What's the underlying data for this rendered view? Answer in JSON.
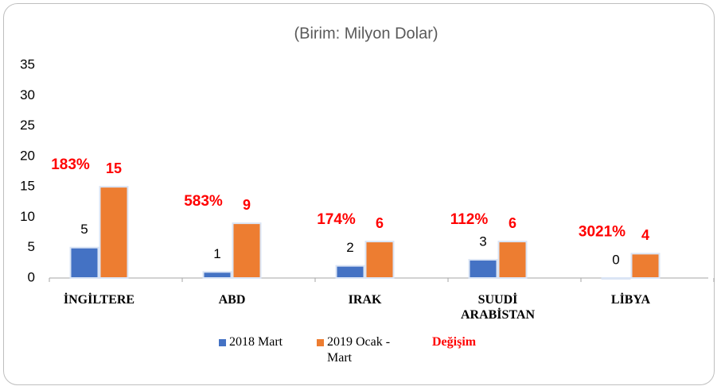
{
  "chart_data": {
    "type": "bar",
    "title": "(Birim: Milyon Dolar)",
    "categories": [
      "İNGİLTERE",
      "ABD",
      "IRAK",
      "SUUDİ ARABİSTAN",
      "LİBYA"
    ],
    "series": [
      {
        "name": "2018 Mart",
        "color": "#4472c4",
        "values": [
          5,
          1,
          2,
          3,
          0
        ]
      },
      {
        "name": "2019 Ocak - Mart",
        "color": "#ed7d31",
        "values": [
          15,
          9,
          6,
          6,
          4
        ]
      }
    ],
    "change": {
      "name": "Değişim",
      "color": "#ff0000",
      "values": [
        183,
        583,
        174,
        112,
        3021
      ],
      "value_labels": [
        "183%",
        "583%",
        "174%",
        "112%",
        "3021%"
      ]
    },
    "ylim": [
      0,
      35
    ],
    "yticks": [
      0,
      5,
      10,
      15,
      20,
      25,
      30,
      35
    ],
    "grid": false,
    "legend": "bottom"
  }
}
